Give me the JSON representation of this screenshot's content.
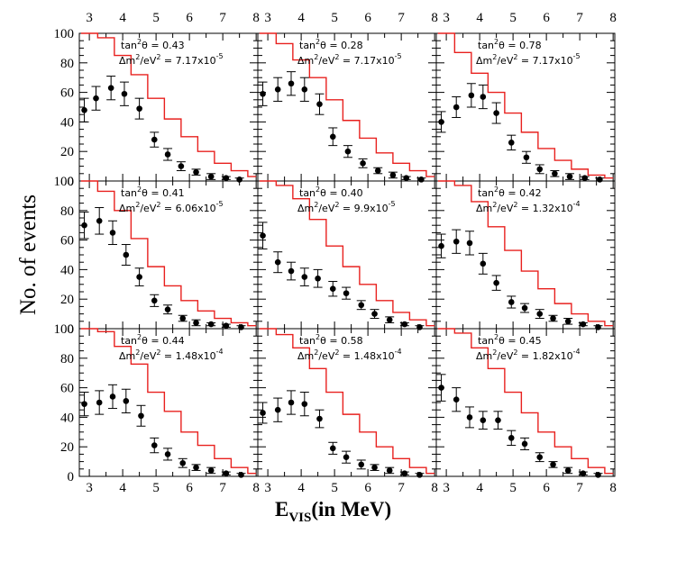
{
  "chart_data": {
    "type": "histogram-grid",
    "ylabel": "No. of events",
    "xlabel_main": "E",
    "xlabel_sub": "VIS",
    "xlabel_unit": "(in MeV)",
    "xlim": [
      2.7,
      8.05
    ],
    "ylim": [
      0,
      100
    ],
    "x_ticks": [
      "3",
      "4",
      "5",
      "6",
      "7",
      "8"
    ],
    "y_ticks": [
      "0",
      "20",
      "40",
      "60",
      "80",
      "100"
    ],
    "bins": [
      2.75,
      3.25,
      3.75,
      4.25,
      4.75,
      5.25,
      5.75,
      6.25,
      6.75,
      7.25,
      7.75,
      8.0
    ],
    "line_color": "#e8201e",
    "point_color": "#000000",
    "panels": [
      {
        "tan_label": "tan",
        "tan_value": "= 0.43",
        "dm_label": "Δm",
        "dm_value": "= 7.17x10",
        "dm_exp": "-5",
        "histogram": [
          100,
          97,
          85,
          72,
          56,
          42,
          30,
          20,
          12,
          7,
          3
        ],
        "points": [
          {
            "x": 2.85,
            "y": 48,
            "err": 8
          },
          {
            "x": 3.2,
            "y": 56,
            "err": 8
          },
          {
            "x": 3.65,
            "y": 63,
            "err": 8
          },
          {
            "x": 4.05,
            "y": 59,
            "err": 8
          },
          {
            "x": 4.5,
            "y": 49,
            "err": 7
          },
          {
            "x": 4.95,
            "y": 28,
            "err": 5
          },
          {
            "x": 5.35,
            "y": 18,
            "err": 4
          },
          {
            "x": 5.75,
            "y": 10,
            "err": 3
          },
          {
            "x": 6.2,
            "y": 6,
            "err": 2
          },
          {
            "x": 6.65,
            "y": 3,
            "err": 2
          },
          {
            "x": 7.1,
            "y": 2,
            "err": 1
          },
          {
            "x": 7.5,
            "y": 1,
            "err": 1
          }
        ]
      },
      {
        "tan_label": "tan",
        "tan_value": "= 0.28",
        "dm_label": "Δm",
        "dm_value": "= 7.17x10",
        "dm_exp": "-5",
        "histogram": [
          100,
          93,
          82,
          70,
          55,
          41,
          29,
          19,
          12,
          7,
          3
        ],
        "points": [
          {
            "x": 2.85,
            "y": 59,
            "err": 8
          },
          {
            "x": 3.3,
            "y": 62,
            "err": 8
          },
          {
            "x": 3.7,
            "y": 66,
            "err": 8
          },
          {
            "x": 4.1,
            "y": 62,
            "err": 8
          },
          {
            "x": 4.55,
            "y": 52,
            "err": 7
          },
          {
            "x": 4.95,
            "y": 30,
            "err": 6
          },
          {
            "x": 5.4,
            "y": 20,
            "err": 4
          },
          {
            "x": 5.85,
            "y": 12,
            "err": 3
          },
          {
            "x": 6.3,
            "y": 7,
            "err": 2
          },
          {
            "x": 6.75,
            "y": 4,
            "err": 2
          },
          {
            "x": 7.15,
            "y": 2,
            "err": 1
          },
          {
            "x": 7.6,
            "y": 1,
            "err": 1
          }
        ]
      },
      {
        "tan_label": "tan",
        "tan_value": "= 0.78",
        "dm_label": "Δm",
        "dm_value": "= 7.17x10",
        "dm_exp": "-5",
        "histogram": [
          100,
          87,
          73,
          60,
          46,
          33,
          22,
          14,
          8,
          4,
          2
        ],
        "points": [
          {
            "x": 2.85,
            "y": 40,
            "err": 7
          },
          {
            "x": 3.3,
            "y": 50,
            "err": 7
          },
          {
            "x": 3.75,
            "y": 58,
            "err": 8
          },
          {
            "x": 4.1,
            "y": 57,
            "err": 8
          },
          {
            "x": 4.5,
            "y": 46,
            "err": 7
          },
          {
            "x": 4.95,
            "y": 26,
            "err": 5
          },
          {
            "x": 5.4,
            "y": 16,
            "err": 4
          },
          {
            "x": 5.8,
            "y": 8,
            "err": 3
          },
          {
            "x": 6.25,
            "y": 5,
            "err": 2
          },
          {
            "x": 6.7,
            "y": 3,
            "err": 2
          },
          {
            "x": 7.15,
            "y": 2,
            "err": 1
          },
          {
            "x": 7.6,
            "y": 1,
            "err": 1
          }
        ]
      },
      {
        "tan_label": "tan",
        "tan_value": "= 0.41",
        "dm_label": "Δm",
        "dm_value": "= 6.06x10",
        "dm_exp": "-5",
        "histogram": [
          100,
          93,
          80,
          61,
          42,
          29,
          19,
          12,
          7,
          4,
          2
        ],
        "points": [
          {
            "x": 2.85,
            "y": 70,
            "err": 9
          },
          {
            "x": 3.3,
            "y": 73,
            "err": 9
          },
          {
            "x": 3.7,
            "y": 65,
            "err": 8
          },
          {
            "x": 4.1,
            "y": 50,
            "err": 7
          },
          {
            "x": 4.5,
            "y": 35,
            "err": 6
          },
          {
            "x": 4.95,
            "y": 19,
            "err": 4
          },
          {
            "x": 5.35,
            "y": 13,
            "err": 3
          },
          {
            "x": 5.8,
            "y": 7,
            "err": 2
          },
          {
            "x": 6.2,
            "y": 4,
            "err": 2
          },
          {
            "x": 6.65,
            "y": 3,
            "err": 1
          },
          {
            "x": 7.1,
            "y": 2,
            "err": 1
          },
          {
            "x": 7.55,
            "y": 1,
            "err": 1
          }
        ]
      },
      {
        "tan_label": "tan",
        "tan_value": "= 0.40",
        "dm_label": "Δm",
        "dm_value": "= 9.9x10",
        "dm_exp": "-5",
        "histogram": [
          100,
          97,
          88,
          74,
          56,
          42,
          30,
          19,
          11,
          6,
          2
        ],
        "points": [
          {
            "x": 2.85,
            "y": 63,
            "err": 9
          },
          {
            "x": 3.3,
            "y": 45,
            "err": 7
          },
          {
            "x": 3.7,
            "y": 39,
            "err": 6
          },
          {
            "x": 4.1,
            "y": 35,
            "err": 6
          },
          {
            "x": 4.5,
            "y": 34,
            "err": 6
          },
          {
            "x": 4.95,
            "y": 27,
            "err": 5
          },
          {
            "x": 5.35,
            "y": 24,
            "err": 4
          },
          {
            "x": 5.8,
            "y": 16,
            "err": 3
          },
          {
            "x": 6.2,
            "y": 10,
            "err": 3
          },
          {
            "x": 6.65,
            "y": 6,
            "err": 2
          },
          {
            "x": 7.1,
            "y": 3,
            "err": 1
          },
          {
            "x": 7.55,
            "y": 1,
            "err": 1
          }
        ]
      },
      {
        "tan_label": "tan",
        "tan_value": "= 0.42",
        "dm_label": "Δm",
        "dm_value": "= 1.32x10",
        "dm_exp": "-4",
        "histogram": [
          100,
          97,
          86,
          69,
          53,
          39,
          27,
          17,
          10,
          5,
          2
        ],
        "points": [
          {
            "x": 2.85,
            "y": 56,
            "err": 8
          },
          {
            "x": 3.3,
            "y": 59,
            "err": 8
          },
          {
            "x": 3.7,
            "y": 58,
            "err": 8
          },
          {
            "x": 4.1,
            "y": 44,
            "err": 7
          },
          {
            "x": 4.5,
            "y": 31,
            "err": 5
          },
          {
            "x": 4.95,
            "y": 18,
            "err": 4
          },
          {
            "x": 5.35,
            "y": 14,
            "err": 3
          },
          {
            "x": 5.8,
            "y": 10,
            "err": 3
          },
          {
            "x": 6.2,
            "y": 7,
            "err": 2
          },
          {
            "x": 6.65,
            "y": 5,
            "err": 2
          },
          {
            "x": 7.1,
            "y": 3,
            "err": 1
          },
          {
            "x": 7.55,
            "y": 1,
            "err": 1
          }
        ]
      },
      {
        "tan_label": "tan",
        "tan_value": "= 0.44",
        "dm_label": "Δm",
        "dm_value": "= 1.48x10",
        "dm_exp": "-4",
        "histogram": [
          100,
          98,
          88,
          76,
          57,
          44,
          30,
          21,
          12,
          6,
          2
        ],
        "points": [
          {
            "x": 2.85,
            "y": 49,
            "err": 8
          },
          {
            "x": 3.3,
            "y": 50,
            "err": 8
          },
          {
            "x": 3.7,
            "y": 54,
            "err": 8
          },
          {
            "x": 4.1,
            "y": 51,
            "err": 8
          },
          {
            "x": 4.55,
            "y": 41,
            "err": 7
          },
          {
            "x": 4.95,
            "y": 21,
            "err": 5
          },
          {
            "x": 5.35,
            "y": 15,
            "err": 4
          },
          {
            "x": 5.8,
            "y": 9,
            "err": 3
          },
          {
            "x": 6.2,
            "y": 6,
            "err": 2
          },
          {
            "x": 6.65,
            "y": 4,
            "err": 2
          },
          {
            "x": 7.1,
            "y": 2,
            "err": 1
          },
          {
            "x": 7.55,
            "y": 1,
            "err": 1
          }
        ]
      },
      {
        "tan_label": "tan",
        "tan_value": "= 0.58",
        "dm_label": "Δm",
        "dm_value": "= 1.48x10",
        "dm_exp": "-4",
        "histogram": [
          100,
          96,
          87,
          73,
          57,
          42,
          30,
          20,
          12,
          6,
          2
        ],
        "points": [
          {
            "x": 2.85,
            "y": 43,
            "err": 7
          },
          {
            "x": 3.3,
            "y": 45,
            "err": 8
          },
          {
            "x": 3.7,
            "y": 50,
            "err": 8
          },
          {
            "x": 4.1,
            "y": 49,
            "err": 8
          },
          {
            "x": 4.55,
            "y": 39,
            "err": 6
          },
          {
            "x": 4.95,
            "y": 19,
            "err": 4
          },
          {
            "x": 5.35,
            "y": 13,
            "err": 4
          },
          {
            "x": 5.8,
            "y": 8,
            "err": 3
          },
          {
            "x": 6.2,
            "y": 6,
            "err": 2
          },
          {
            "x": 6.65,
            "y": 4,
            "err": 2
          },
          {
            "x": 7.1,
            "y": 2,
            "err": 1
          },
          {
            "x": 7.55,
            "y": 1,
            "err": 1
          }
        ]
      },
      {
        "tan_label": "tan",
        "tan_value": "= 0.45",
        "dm_label": "Δm",
        "dm_value": "= 1.82x10",
        "dm_exp": "-4",
        "histogram": [
          100,
          97,
          87,
          73,
          57,
          43,
          30,
          20,
          12,
          6,
          2
        ],
        "points": [
          {
            "x": 2.85,
            "y": 60,
            "err": 9
          },
          {
            "x": 3.3,
            "y": 52,
            "err": 8
          },
          {
            "x": 3.7,
            "y": 40,
            "err": 7
          },
          {
            "x": 4.1,
            "y": 38,
            "err": 6
          },
          {
            "x": 4.55,
            "y": 38,
            "err": 6
          },
          {
            "x": 4.95,
            "y": 26,
            "err": 5
          },
          {
            "x": 5.35,
            "y": 22,
            "err": 4
          },
          {
            "x": 5.8,
            "y": 13,
            "err": 3
          },
          {
            "x": 6.2,
            "y": 8,
            "err": 2
          },
          {
            "x": 6.65,
            "y": 4,
            "err": 2
          },
          {
            "x": 7.1,
            "y": 2,
            "err": 1
          },
          {
            "x": 7.55,
            "y": 1,
            "err": 1
          }
        ]
      }
    ]
  }
}
